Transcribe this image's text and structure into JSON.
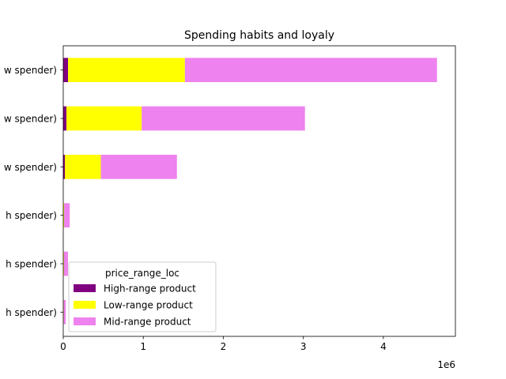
{
  "chart_data": {
    "type": "bar",
    "orientation": "horizontal",
    "stacked": true,
    "title": "Spending habits and loyaly",
    "xlabel": "",
    "ylabel": "",
    "x_offset_label": "1e6",
    "xlim": [
      0,
      4900000
    ],
    "xticks": [
      {
        "value": 0,
        "label": "0"
      },
      {
        "value": 1000000,
        "label": "1"
      },
      {
        "value": 2000000,
        "label": "2"
      },
      {
        "value": 3000000,
        "label": "3"
      },
      {
        "value": 4000000,
        "label": "4"
      }
    ],
    "categories": [
      "w spender)",
      "w spender)",
      "w spender)",
      "h spender)",
      "h spender)",
      "h spender)"
    ],
    "series": [
      {
        "name": "High-range product",
        "color": "#800080",
        "values": [
          60000,
          40000,
          20000,
          1000,
          800,
          600
        ]
      },
      {
        "name": "Low-range product",
        "color": "#ffff00",
        "values": [
          1460000,
          940000,
          450000,
          10000,
          8000,
          6000
        ]
      },
      {
        "name": "Mid-range product",
        "color": "#ee82ee",
        "values": [
          3150000,
          2040000,
          950000,
          70000,
          50000,
          25000
        ]
      }
    ],
    "legend": {
      "title": "price_range_loc",
      "placement": "lower-left"
    },
    "grid": false
  }
}
